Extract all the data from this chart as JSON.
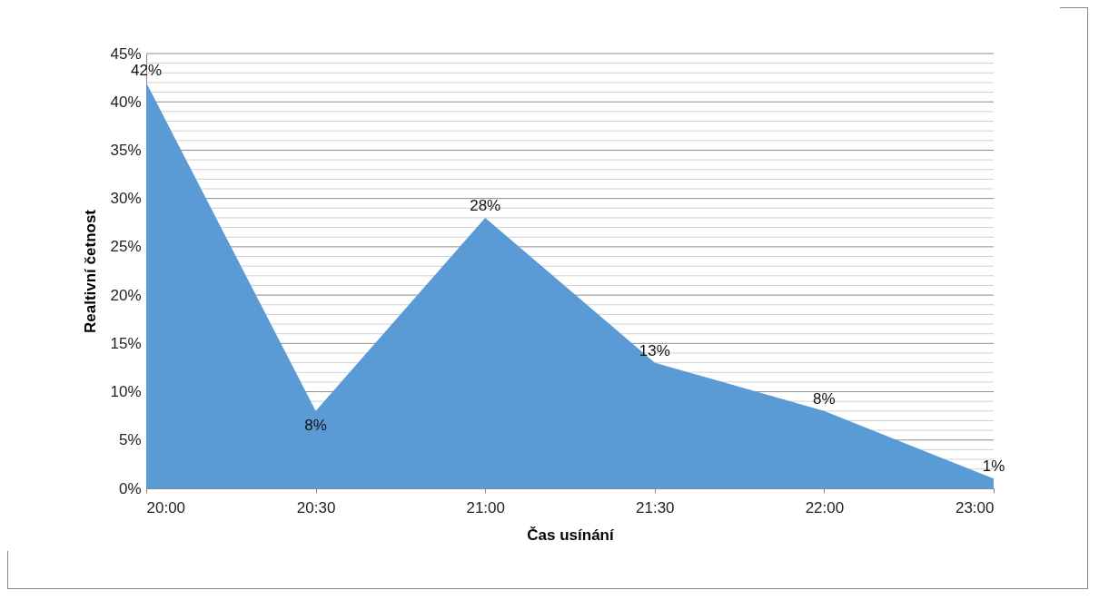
{
  "chart_data": {
    "type": "area",
    "xlabel": "Čas usínání",
    "ylabel": "Realtivní četnost",
    "categories": [
      "20:00",
      "20:30",
      "21:00",
      "21:30",
      "22:00",
      "23:00"
    ],
    "values": [
      42,
      8,
      28,
      13,
      8,
      1
    ],
    "value_labels": [
      "42%",
      "8%",
      "28%",
      "13%",
      "8%",
      "1%"
    ],
    "color": "#5b9bd5",
    "ylim": [
      0,
      45
    ],
    "yticks": [
      {
        "value": 0,
        "label": "0%"
      },
      {
        "value": 1,
        "label": null
      },
      {
        "value": 2,
        "label": null
      },
      {
        "value": 3,
        "label": null
      },
      {
        "value": 4,
        "label": null
      },
      {
        "value": 5,
        "label": "5%"
      },
      {
        "value": 6,
        "label": null
      },
      {
        "value": 7,
        "label": null
      },
      {
        "value": 8,
        "label": null
      },
      {
        "value": 9,
        "label": null
      },
      {
        "value": 10,
        "label": "10%"
      },
      {
        "value": 11,
        "label": null
      },
      {
        "value": 12,
        "label": null
      },
      {
        "value": 13,
        "label": null
      },
      {
        "value": 14,
        "label": null
      },
      {
        "value": 15,
        "label": "15%"
      },
      {
        "value": 16,
        "label": null
      },
      {
        "value": 17,
        "label": null
      },
      {
        "value": 18,
        "label": null
      },
      {
        "value": 19,
        "label": null
      },
      {
        "value": 20,
        "label": "20%"
      },
      {
        "value": 21,
        "label": null
      },
      {
        "value": 22,
        "label": null
      },
      {
        "value": 23,
        "label": null
      },
      {
        "value": 24,
        "label": null
      },
      {
        "value": 25,
        "label": "25%"
      },
      {
        "value": 26,
        "label": null
      },
      {
        "value": 27,
        "label": null
      },
      {
        "value": 28,
        "label": null
      },
      {
        "value": 29,
        "label": null
      },
      {
        "value": 30,
        "label": "30%"
      },
      {
        "value": 31,
        "label": null
      },
      {
        "value": 32,
        "label": null
      },
      {
        "value": 33,
        "label": null
      },
      {
        "value": 34,
        "label": null
      },
      {
        "value": 35,
        "label": "35%"
      },
      {
        "value": 36,
        "label": null
      },
      {
        "value": 37,
        "label": null
      },
      {
        "value": 38,
        "label": null
      },
      {
        "value": 39,
        "label": null
      },
      {
        "value": 40,
        "label": "40%"
      },
      {
        "value": 41,
        "label": null
      },
      {
        "value": 42,
        "label": null
      },
      {
        "value": 43,
        "label": null
      },
      {
        "value": 44,
        "label": null
      },
      {
        "value": 45,
        "label": "45%"
      }
    ],
    "grid": "y"
  }
}
